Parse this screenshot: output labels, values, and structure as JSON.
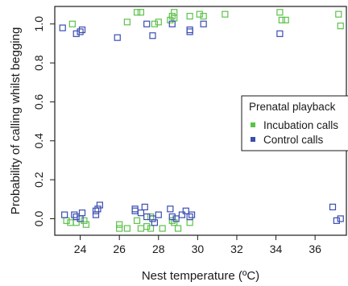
{
  "chart_data": {
    "type": "scatter",
    "xlabel": "Nest temperature (ºC)",
    "ylabel": "Probability of calling whilst begging",
    "xlim": [
      22.7,
      37.6
    ],
    "ylim": [
      -0.085,
      1.09
    ],
    "xticks": [
      24,
      26,
      28,
      30,
      32,
      34,
      36
    ],
    "yticks": [
      0.0,
      0.2,
      0.4,
      0.6,
      0.8,
      1.0
    ],
    "ytick_labels": [
      "0.0",
      "0.2",
      "0.4",
      "0.6",
      "0.8",
      "1.0"
    ],
    "legend": {
      "title": "Prenatal playback",
      "position": "right",
      "entries": [
        "Incubation calls",
        "Control calls"
      ]
    },
    "series": [
      {
        "name": "Incubation calls",
        "color": "#5cc24a",
        "points": [
          [
            23.6,
            1.0
          ],
          [
            26.4,
            1.01
          ],
          [
            26.9,
            1.06
          ],
          [
            27.1,
            1.06
          ],
          [
            27.8,
            1.0
          ],
          [
            28.0,
            1.01
          ],
          [
            28.6,
            1.02
          ],
          [
            28.7,
            1.04
          ],
          [
            28.8,
            1.06
          ],
          [
            28.8,
            1.03
          ],
          [
            29.6,
            1.04
          ],
          [
            30.1,
            1.05
          ],
          [
            30.3,
            1.04
          ],
          [
            31.4,
            1.05
          ],
          [
            34.2,
            1.06
          ],
          [
            34.3,
            1.02
          ],
          [
            34.5,
            1.02
          ],
          [
            37.2,
            1.05
          ],
          [
            37.3,
            0.99
          ],
          [
            23.3,
            -0.01
          ],
          [
            23.5,
            -0.02
          ],
          [
            23.8,
            -0.02
          ],
          [
            24.2,
            -0.01
          ],
          [
            24.3,
            -0.03
          ],
          [
            26.0,
            -0.03
          ],
          [
            26.0,
            -0.05
          ],
          [
            26.4,
            -0.05
          ],
          [
            26.9,
            -0.01
          ],
          [
            27.1,
            -0.05
          ],
          [
            27.4,
            -0.04
          ],
          [
            27.6,
            -0.05
          ],
          [
            27.6,
            0.01
          ],
          [
            28.2,
            -0.05
          ],
          [
            28.7,
            -0.01
          ],
          [
            28.8,
            -0.02
          ],
          [
            29.0,
            -0.05
          ],
          [
            29.6,
            -0.02
          ]
        ]
      },
      {
        "name": "Control calls",
        "color": "#3b4db0",
        "points": [
          [
            23.1,
            0.98
          ],
          [
            23.8,
            0.95
          ],
          [
            24.0,
            0.96
          ],
          [
            24.1,
            0.97
          ],
          [
            25.9,
            0.93
          ],
          [
            27.4,
            1.0
          ],
          [
            27.7,
            0.94
          ],
          [
            28.7,
            1.0
          ],
          [
            29.6,
            0.97
          ],
          [
            29.6,
            0.96
          ],
          [
            30.3,
            1.0
          ],
          [
            34.2,
            0.95
          ],
          [
            23.2,
            0.02
          ],
          [
            23.7,
            0.02
          ],
          [
            23.8,
            0.01
          ],
          [
            24.0,
            0.0
          ],
          [
            24.1,
            0.03
          ],
          [
            24.8,
            0.04
          ],
          [
            24.9,
            0.05
          ],
          [
            25.0,
            0.07
          ],
          [
            24.8,
            0.02
          ],
          [
            26.8,
            0.04
          ],
          [
            26.8,
            0.05
          ],
          [
            27.1,
            0.03
          ],
          [
            27.3,
            0.06
          ],
          [
            27.4,
            0.01
          ],
          [
            27.7,
            0.0
          ],
          [
            27.8,
            -0.02
          ],
          [
            28.0,
            0.02
          ],
          [
            28.6,
            0.05
          ],
          [
            28.7,
            0.01
          ],
          [
            28.9,
            0.0
          ],
          [
            29.2,
            0.02
          ],
          [
            29.4,
            0.04
          ],
          [
            29.6,
            0.01
          ],
          [
            29.7,
            0.02
          ],
          [
            36.9,
            0.06
          ],
          [
            37.1,
            -0.01
          ],
          [
            37.3,
            0.0
          ]
        ]
      }
    ]
  }
}
